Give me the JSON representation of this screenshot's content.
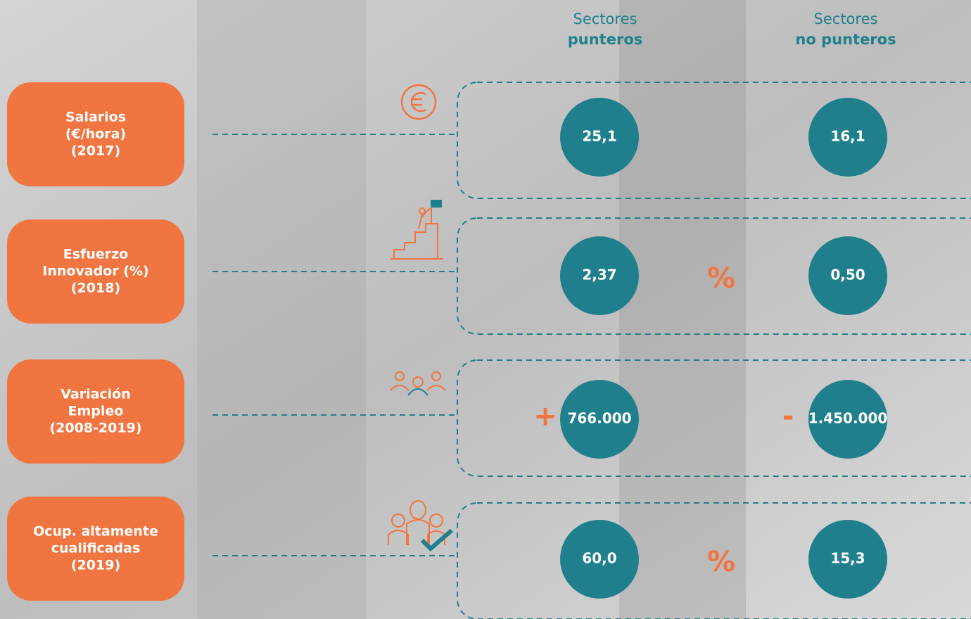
{
  "columns": [
    {
      "line1": "Sectores",
      "line2": "punteros"
    },
    {
      "line1": "Sectores",
      "line2": "no punteros"
    }
  ],
  "rows": [
    {
      "label": [
        "Salarios",
        "(€/hora)",
        "(2017)"
      ],
      "values": [
        "25,1",
        "16,1"
      ]
    },
    {
      "label": [
        "Esfuerzo",
        "Innovador (%)",
        "(2018)"
      ],
      "values": [
        "2,37",
        "0,50"
      ],
      "unit": "%"
    },
    {
      "label": [
        "Variación",
        "Empleo",
        "(2008-2019)"
      ],
      "values": [
        "766.000",
        "1.450.000"
      ],
      "signs": [
        "+",
        "-"
      ]
    },
    {
      "label": [
        "Ocup. altamente",
        "cualificadas",
        "(2019)"
      ],
      "values": [
        "60,0",
        "15,3"
      ],
      "unit": "%"
    }
  ]
}
